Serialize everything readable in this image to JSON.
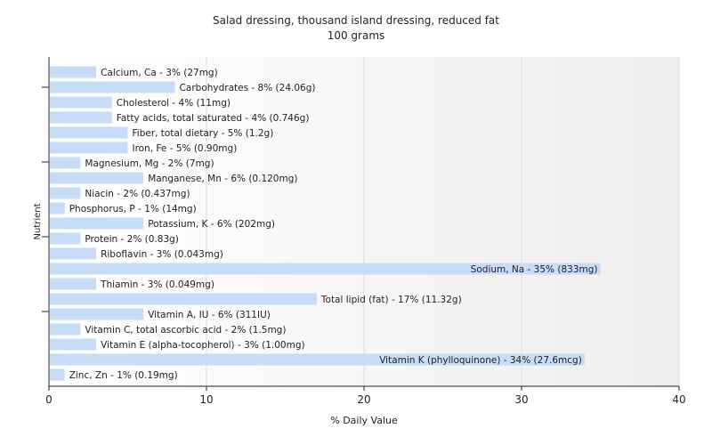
{
  "chart_data": {
    "type": "bar",
    "orientation": "horizontal",
    "title": "Salad dressing, thousand island dressing, reduced fat",
    "subtitle": "100 grams",
    "xlabel": "% Daily Value",
    "ylabel": "Nutrient",
    "xlim": [
      0,
      40
    ],
    "xticks": [
      0,
      10,
      20,
      30,
      40
    ],
    "grid": true,
    "bar_color": "#c6dcf7",
    "categories": [
      "Calcium, Ca",
      "Carbohydrates",
      "Cholesterol",
      "Fatty acids, total saturated",
      "Fiber, total dietary",
      "Iron, Fe",
      "Magnesium, Mg",
      "Manganese, Mn",
      "Niacin",
      "Phosphorus, P",
      "Potassium, K",
      "Protein",
      "Riboflavin",
      "Sodium, Na",
      "Thiamin",
      "Total lipid (fat)",
      "Vitamin A, IU",
      "Vitamin C, total ascorbic acid",
      "Vitamin E (alpha-tocopherol)",
      "Vitamin K (phylloquinone)",
      "Zinc, Zn"
    ],
    "values": [
      3,
      8,
      4,
      4,
      5,
      5,
      2,
      6,
      2,
      1,
      6,
      2,
      3,
      35,
      3,
      17,
      6,
      2,
      3,
      34,
      1
    ],
    "labels": [
      "Calcium, Ca - 3% (27mg)",
      "Carbohydrates - 8% (24.06g)",
      "Cholesterol - 4% (11mg)",
      "Fatty acids, total saturated - 4% (0.746g)",
      "Fiber, total dietary - 5% (1.2g)",
      "Iron, Fe - 5% (0.90mg)",
      "Magnesium, Mg - 2% (7mg)",
      "Manganese, Mn - 6% (0.120mg)",
      "Niacin - 2% (0.437mg)",
      "Phosphorus, P - 1% (14mg)",
      "Potassium, K - 6% (202mg)",
      "Protein - 2% (0.83g)",
      "Riboflavin - 3% (0.043mg)",
      "Sodium, Na - 35% (833mg)",
      "Thiamin - 3% (0.049mg)",
      "Total lipid (fat) - 17% (11.32g)",
      "Vitamin A, IU - 6% (311IU)",
      "Vitamin C, total ascorbic acid - 2% (1.5mg)",
      "Vitamin E (alpha-tocopherol) - 3% (1.00mg)",
      "Vitamin K (phylloquinone) - 34% (27.6mcg)",
      "Zinc, Zn - 1% (0.19mg)"
    ]
  }
}
